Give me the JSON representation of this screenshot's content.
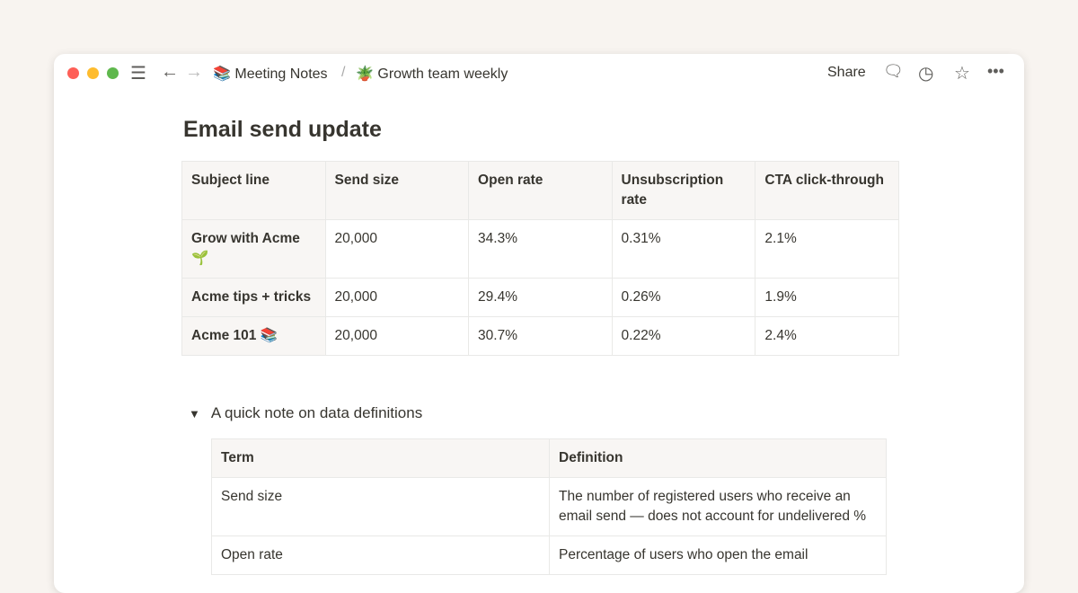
{
  "breadcrumb": [
    {
      "icon": "📚",
      "label": "Meeting Notes"
    },
    {
      "icon": "🪴",
      "label": "Growth team weekly"
    }
  ],
  "breadcrumb_sep": "/",
  "toolbar": {
    "share": "Share"
  },
  "page": {
    "title": "Email send update"
  },
  "table1": {
    "headers": [
      "Subject line",
      "Send size",
      "Open rate",
      "Unsubscription rate",
      "CTA click-through"
    ],
    "rows": [
      [
        "Grow with Acme 🌱",
        "20,000",
        "34.3%",
        "0.31%",
        "2.1%"
      ],
      [
        "Acme tips + tricks",
        "20,000",
        "29.4%",
        "0.26%",
        "1.9%"
      ],
      [
        "Acme 101 📚",
        "20,000",
        "30.7%",
        "0.22%",
        "2.4%"
      ]
    ]
  },
  "toggle": {
    "label": "A quick note on data definitions",
    "icon": "▼"
  },
  "table2": {
    "headers": [
      "Term",
      "Definition"
    ],
    "rows": [
      [
        "Send size",
        "The number of registered users who receive an email send — does not account for undelivered %"
      ],
      [
        "Open rate",
        "Percentage of users who open the email"
      ]
    ]
  },
  "colors": {
    "close": "#fe5f57",
    "minimize": "#febc2e",
    "maximize": "#28c840"
  }
}
